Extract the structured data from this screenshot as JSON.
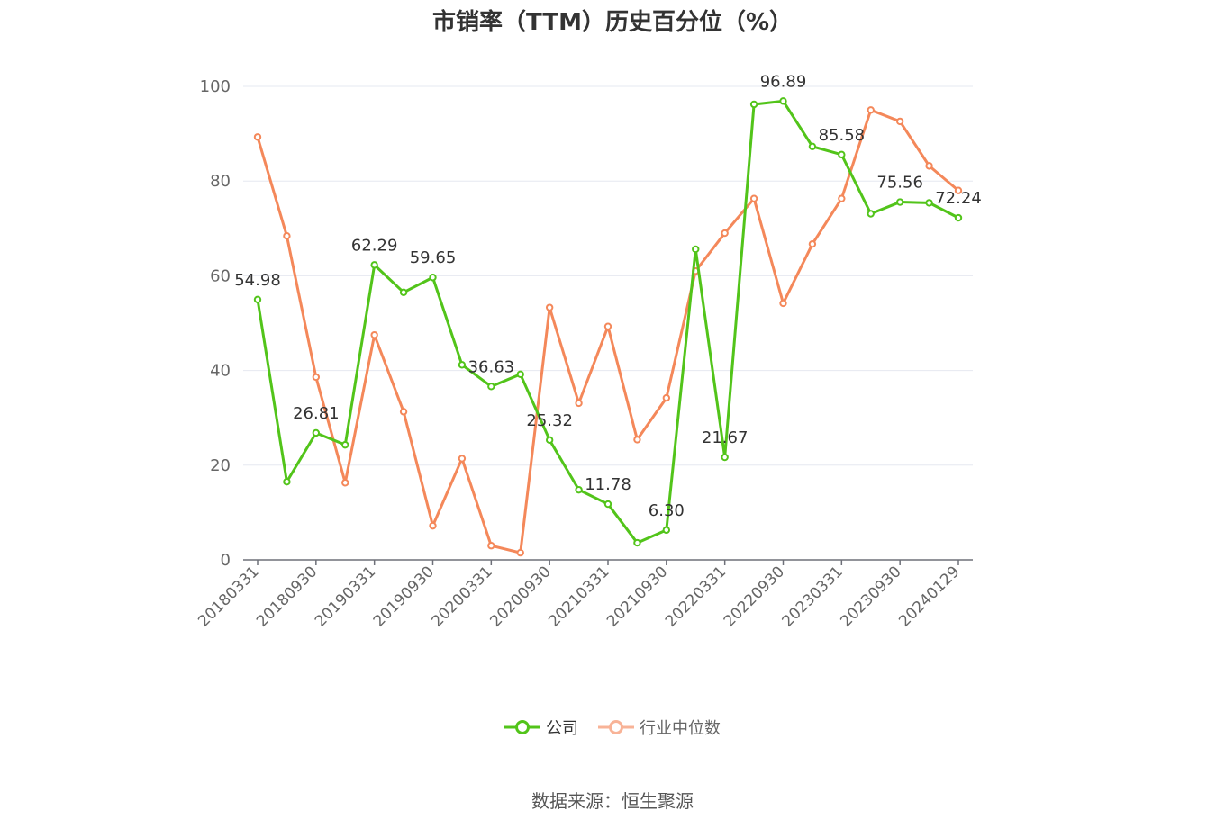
{
  "chart_data": {
    "type": "line",
    "title": "市销率（TTM）历史百分位（%）",
    "xlabel": "",
    "ylabel": "",
    "ylim": [
      0,
      100
    ],
    "yticks": [
      0,
      20,
      40,
      60,
      80,
      100
    ],
    "x": [
      "20180331",
      "20180630",
      "20180930",
      "20181231",
      "20190331",
      "20190630",
      "20190930",
      "20191231",
      "20200331",
      "20200630",
      "20200930",
      "20201231",
      "20210331",
      "20210630",
      "20210930",
      "20211231",
      "20220331",
      "20220630",
      "20220930",
      "20221231",
      "20230331",
      "20230630",
      "20230930",
      "20231231",
      "20240129"
    ],
    "xtick_labels": [
      "20180331",
      "20180930",
      "20190331",
      "20190930",
      "20200331",
      "20200930",
      "20210331",
      "20210930",
      "20220331",
      "20220930",
      "20230331",
      "20230930",
      "20240129"
    ],
    "grid": true,
    "legend_position": "bottom",
    "series": [
      {
        "name": "公司",
        "color": "#52c41a",
        "values": [
          54.98,
          16.5,
          26.81,
          24.3,
          62.29,
          56.5,
          59.65,
          41.2,
          36.63,
          39.2,
          25.32,
          14.8,
          11.78,
          3.6,
          6.3,
          65.6,
          21.67,
          96.2,
          96.89,
          87.3,
          85.58,
          73.1,
          75.56,
          75.4,
          72.24
        ],
        "labels": {
          "0": "54.98",
          "2": "26.81",
          "4": "62.29",
          "6": "59.65",
          "8": "36.63",
          "10": "25.32",
          "12": "11.78",
          "14": "6.30",
          "16": "21.67",
          "18": "96.89",
          "20": "85.58",
          "22": "75.56",
          "24": "72.24"
        }
      },
      {
        "name": "行业中位数",
        "color": "#f4885a",
        "values": [
          89.3,
          68.4,
          38.6,
          16.3,
          47.5,
          31.3,
          7.2,
          21.4,
          3.0,
          1.5,
          53.3,
          33.1,
          49.3,
          25.4,
          34.2,
          61.0,
          69.0,
          76.3,
          54.2,
          66.7,
          76.3,
          95.0,
          92.6,
          83.2,
          78.0
        ]
      }
    ]
  },
  "source": "数据来源：恒生聚源"
}
